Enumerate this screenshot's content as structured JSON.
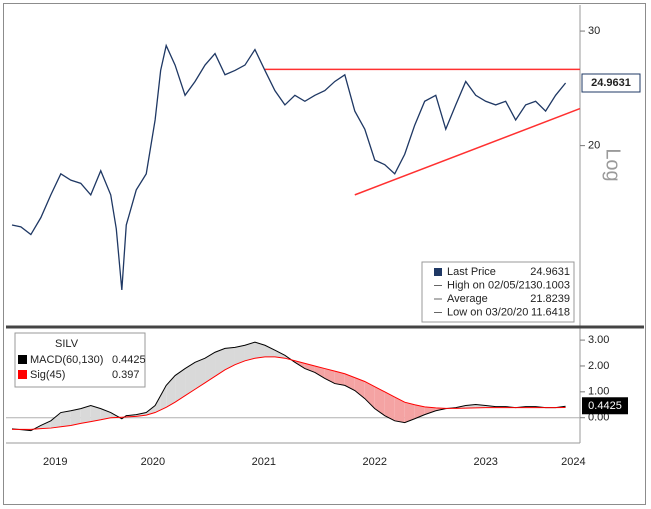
{
  "chart_data": [
    {
      "type": "line",
      "log_scale": true,
      "y_label": "Log",
      "xlim": [
        2019.23,
        2024.35
      ],
      "ylim": [
        10.6,
        32.9
      ],
      "yticks": [
        20,
        30
      ],
      "x": [
        2019.23,
        2019.31,
        2019.4,
        2019.49,
        2019.58,
        2019.67,
        2019.76,
        2019.85,
        2019.94,
        2020.03,
        2020.12,
        2020.17,
        2020.22,
        2020.26,
        2020.35,
        2020.44,
        2020.52,
        2020.57,
        2020.62,
        2020.7,
        2020.79,
        2020.88,
        2020.97,
        2021.06,
        2021.15,
        2021.24,
        2021.33,
        2021.42,
        2021.51,
        2021.6,
        2021.69,
        2021.78,
        2021.87,
        2021.96,
        2022.05,
        2022.14,
        2022.23,
        2022.32,
        2022.41,
        2022.5,
        2022.59,
        2022.68,
        2022.77,
        2022.86,
        2022.95,
        2023.05,
        2023.14,
        2023.23,
        2023.32,
        2023.41,
        2023.5,
        2023.59,
        2023.68,
        2023.77,
        2023.86,
        2023.95,
        2024.04,
        2024.13,
        2024.22
      ],
      "series": [
        {
          "name": "Last Price",
          "color": "#1f3864",
          "values": [
            15.1,
            15.0,
            14.6,
            15.5,
            16.8,
            18.1,
            17.7,
            17.5,
            16.8,
            18.3,
            16.8,
            14.9,
            12.0,
            15.1,
            17.1,
            18.1,
            21.9,
            26.1,
            28.5,
            26.6,
            23.9,
            25.1,
            26.6,
            27.7,
            25.7,
            26.1,
            26.6,
            28.1,
            26.1,
            24.3,
            23.1,
            23.9,
            23.4,
            23.9,
            24.3,
            25.1,
            25.7,
            22.6,
            21.2,
            19.0,
            18.7,
            18.1,
            19.4,
            21.5,
            23.4,
            23.9,
            21.2,
            23.1,
            25.1,
            23.9,
            23.4,
            23.1,
            23.4,
            21.9,
            23.1,
            23.4,
            22.6,
            23.9,
            24.9631
          ]
        }
      ],
      "trendlines": [
        {
          "color": "#ff3030",
          "x": [
            2021.51,
            2024.35
          ],
          "values": [
            26.2,
            26.2
          ]
        },
        {
          "color": "#ff3030",
          "x": [
            2022.32,
            2024.35
          ],
          "values": [
            16.8,
            22.8
          ]
        }
      ],
      "stats": [
        {
          "label": "High on 02/05/21",
          "value": 30.1003
        },
        {
          "label": "Average",
          "value": 21.8239
        },
        {
          "label": "Low on 03/20/20",
          "value": 11.6418
        }
      ]
    },
    {
      "type": "line",
      "legend_title": "SILV",
      "xlim": [
        2019.23,
        2024.35
      ],
      "ylim": [
        -0.9,
        3.39
      ],
      "yticks": [
        {
          "value": 3,
          "label": "3.00"
        },
        {
          "value": 2,
          "label": "2.00"
        },
        {
          "value": 1,
          "label": "1.00"
        },
        {
          "value": 0,
          "label": "0.00"
        }
      ],
      "xticks": [
        {
          "value": 2019.62,
          "label": "2019"
        },
        {
          "value": 2020.5,
          "label": "2020"
        },
        {
          "value": 2021.5,
          "label": "2021"
        },
        {
          "value": 2022.5,
          "label": "2022"
        },
        {
          "value": 2023.5,
          "label": "2023"
        },
        {
          "value": 2024.29,
          "label": "2024"
        }
      ],
      "fill_above": "#d9d9d9",
      "fill_below": "#f4a3a3",
      "x": [
        2019.23,
        2019.31,
        2019.4,
        2019.49,
        2019.58,
        2019.67,
        2019.76,
        2019.85,
        2019.94,
        2020.03,
        2020.12,
        2020.17,
        2020.22,
        2020.26,
        2020.35,
        2020.44,
        2020.52,
        2020.57,
        2020.62,
        2020.7,
        2020.79,
        2020.88,
        2020.97,
        2021.06,
        2021.15,
        2021.24,
        2021.33,
        2021.42,
        2021.51,
        2021.6,
        2021.69,
        2021.78,
        2021.87,
        2021.96,
        2022.05,
        2022.14,
        2022.23,
        2022.32,
        2022.41,
        2022.5,
        2022.59,
        2022.68,
        2022.77,
        2022.86,
        2022.95,
        2023.05,
        2023.14,
        2023.23,
        2023.32,
        2023.41,
        2023.5,
        2023.59,
        2023.68,
        2023.77,
        2023.86,
        2023.95,
        2024.04,
        2024.13,
        2024.22
      ],
      "series": [
        {
          "name": "MACD(60,130)",
          "color": "#000000",
          "values": [
            -0.43,
            -0.46,
            -0.5,
            -0.3,
            -0.12,
            0.2,
            0.27,
            0.35,
            0.47,
            0.35,
            0.2,
            0.08,
            -0.04,
            0.08,
            0.12,
            0.2,
            0.47,
            0.86,
            1.25,
            1.63,
            1.9,
            2.14,
            2.3,
            2.53,
            2.68,
            2.72,
            2.8,
            2.92,
            2.8,
            2.61,
            2.41,
            2.14,
            1.9,
            1.75,
            1.52,
            1.32,
            1.25,
            1.05,
            0.74,
            0.35,
            0.08,
            -0.12,
            -0.19,
            -0.04,
            0.12,
            0.27,
            0.35,
            0.39,
            0.47,
            0.51,
            0.47,
            0.43,
            0.43,
            0.39,
            0.43,
            0.43,
            0.39,
            0.39,
            0.4425
          ]
        },
        {
          "name": "Sig(45)",
          "color": "#ff0000",
          "values": [
            -0.45,
            -0.45,
            -0.45,
            -0.42,
            -0.4,
            -0.35,
            -0.3,
            -0.22,
            -0.15,
            -0.08,
            0.0,
            0.01,
            0.02,
            0.03,
            0.05,
            0.1,
            0.2,
            0.3,
            0.4,
            0.6,
            0.85,
            1.1,
            1.35,
            1.6,
            1.85,
            2.05,
            2.2,
            2.3,
            2.35,
            2.35,
            2.3,
            2.2,
            2.1,
            2.0,
            1.9,
            1.8,
            1.7,
            1.55,
            1.4,
            1.2,
            1.0,
            0.8,
            0.6,
            0.5,
            0.42,
            0.38,
            0.36,
            0.36,
            0.37,
            0.38,
            0.39,
            0.39,
            0.39,
            0.39,
            0.39,
            0.39,
            0.39,
            0.39,
            0.397
          ]
        }
      ]
    }
  ]
}
